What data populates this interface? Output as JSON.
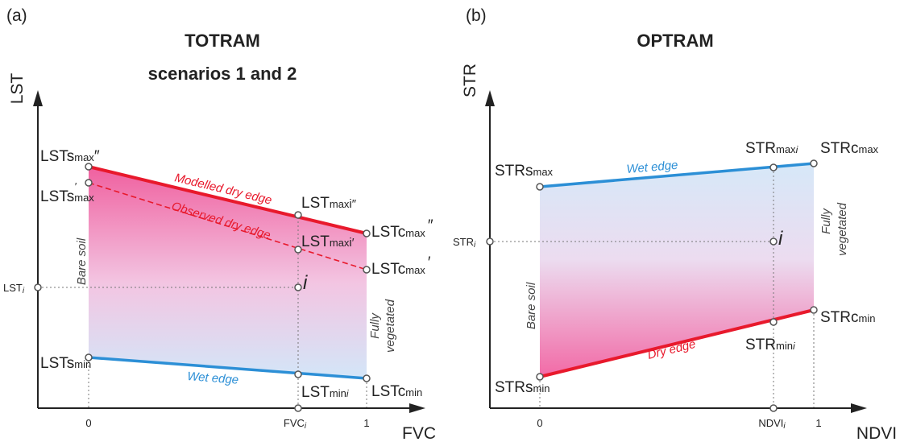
{
  "panel_a": {
    "tag": "(a)",
    "title_line1": "TOTRAM",
    "title_line2": "scenarios 1 and 2",
    "y_axis": "LST",
    "x_axis": "FVC",
    "x_ticks": [
      "0",
      "FVC",
      "1"
    ],
    "x_tick_i": "i",
    "labels": {
      "lst_smax2": "LSTs",
      "lst_smax2_sub": "max",
      "lst_smax2_mark": "″",
      "lst_smax1": "LSTs",
      "lst_smax1_sub": "max",
      "lst_smax1_mark": "′",
      "lst_i": "LST",
      "lst_i_sub": "i",
      "lst_smin": "LSTs",
      "lst_smin_sub": "min",
      "lst_max_i2": "LST",
      "lst_max_i2_sub": "max",
      "lst_max_i2_mark": "i″",
      "lst_max_i1": "LST",
      "lst_max_i1_sub": "max",
      "lst_max_i1_mark": "i′",
      "lst_min_i": "LST",
      "lst_min_i_sub": "min",
      "lst_min_i_mark": "i",
      "lst_cmax2": "LSTc",
      "lst_cmax2_sub": "max",
      "lst_cmax2_mark": "″",
      "lst_cmax1": "LSTc",
      "lst_cmax1_sub": "max",
      "lst_cmax1_mark": "′",
      "lst_cmin": "LSTc",
      "lst_cmin_sub": "min",
      "point_i": "i"
    },
    "edges": {
      "modelled_dry": "Modelled  dry edge",
      "observed_dry": "Observed dry edge",
      "wet": "Wet edge"
    },
    "bare_soil": "Bare soil",
    "fully": "Fully",
    "vegetated": "vegetated"
  },
  "panel_b": {
    "tag": "(b)",
    "title": "OPTRAM",
    "y_axis": "STR",
    "x_axis": "NDVI",
    "x_ticks": [
      "0",
      "NDVI",
      "1"
    ],
    "x_tick_i": "i",
    "labels": {
      "str_smax": "STRs",
      "str_smax_sub": "max",
      "str_smin": "STRs",
      "str_smin_sub": "min",
      "str_max_i": "STR",
      "str_max_i_sub": "max",
      "str_max_i_mark": "i",
      "str_min_i": "STR",
      "str_min_i_sub": "min",
      "str_min_i_mark": "i",
      "str_cmax": "STRc",
      "str_cmax_sub": "max",
      "str_cmin": "STRc",
      "str_cmin_sub": "min",
      "str_i": "STR",
      "str_i_sub": "i",
      "point_i": "i"
    },
    "edges": {
      "wet": "Wet edge",
      "dry": "Dry edge"
    },
    "bare_soil": "Bare soil",
    "fully": "Fully",
    "vegetated": "vegetated"
  },
  "colors": {
    "dry_edge": "#e8192c",
    "wet_edge": "#2c8fd6",
    "dry_fill": "#f26aa6",
    "wet_fill": "#cfe4f7"
  }
}
